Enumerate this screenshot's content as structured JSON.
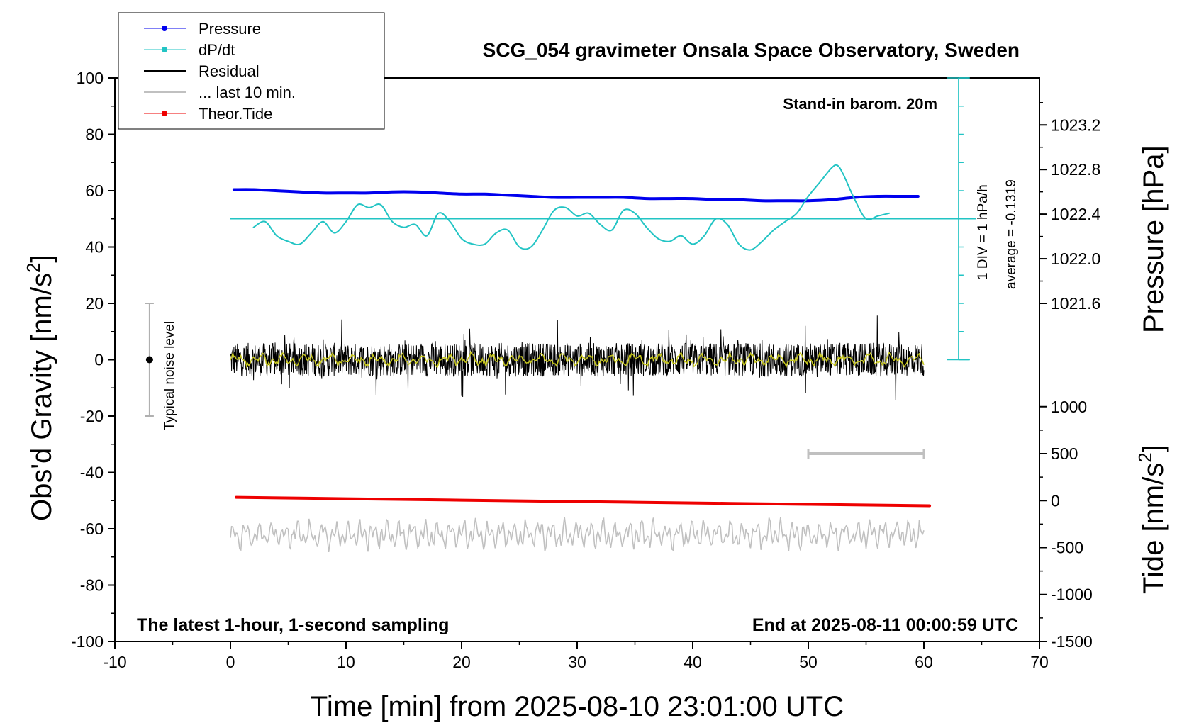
{
  "chart_data": {
    "type": "line",
    "title": "SCG_054 gravimeter Onsala Space Observatory, Sweden",
    "xlabel": "Time [min] from 2025-08-10 23:01:00 UTC",
    "ylabel_left": "Obs'd Gravity [nm/s",
    "ylabel_left_sup": "2",
    "ylabel_left_end": "]",
    "ylabel_right_top": "Pressure [hPa]",
    "ylabel_right_bottom": "Tide [nm/s",
    "ylabel_right_bottom_sup": "2",
    "ylabel_right_bottom_end": "]",
    "xlim": [
      -10,
      70
    ],
    "ylim": [
      -100,
      100
    ],
    "x_ticks": [
      "-10",
      "0",
      "10",
      "20",
      "30",
      "40",
      "50",
      "60",
      "70"
    ],
    "y_ticks": [
      "-100",
      "-80",
      "-60",
      "-40",
      "-20",
      "0",
      "20",
      "40",
      "60",
      "80",
      "100"
    ],
    "pressure_ticks": [
      "1021.6",
      "1022.0",
      "1022.4",
      "1022.8",
      "1023.2"
    ],
    "tide_ticks": [
      "-1500",
      "-1000",
      "-500",
      "0",
      "500",
      "1000"
    ],
    "annotations": {
      "barometer": "Stand-in barom. 20m",
      "bottom_left": "The latest 1-hour, 1-second sampling",
      "bottom_right": "End at 2025-08-11 00:00:59 UTC",
      "noise_label": "Typical noise level",
      "div_label": "1 DIV = 1 hPa/h",
      "average_label": "average = -0.1319"
    },
    "legend": {
      "placement": "top-left",
      "entries": [
        "Pressure",
        "dP/dt",
        "Residual",
        "... last 10 min.",
        "Theor.Tide"
      ]
    },
    "colors": {
      "pressure": "#0000ee",
      "dpdt": "#22c4c4",
      "residual": "#000000",
      "residual_smooth": "#c8c820",
      "last10": "#c0c0c0",
      "tide": "#ee0000"
    },
    "noise_level": {
      "x": -7,
      "y": 0,
      "range": [
        -20,
        20
      ]
    },
    "dpdt_reference_level": 50,
    "last10_bar": {
      "x": [
        50,
        60
      ],
      "tide": 500
    },
    "series": [
      {
        "name": "Pressure",
        "axis": "pressure",
        "x": [
          0.3,
          2,
          4,
          6,
          8,
          10,
          12,
          14,
          16,
          18,
          20,
          22,
          24,
          26,
          28,
          30,
          32,
          34,
          36,
          38,
          40,
          42,
          44,
          46,
          48,
          50,
          52,
          54,
          56,
          58,
          59.5
        ],
        "y": [
          1022.62,
          1022.62,
          1022.61,
          1022.6,
          1022.59,
          1022.59,
          1022.59,
          1022.6,
          1022.6,
          1022.59,
          1022.58,
          1022.58,
          1022.57,
          1022.56,
          1022.55,
          1022.55,
          1022.55,
          1022.55,
          1022.54,
          1022.54,
          1022.54,
          1022.53,
          1022.53,
          1022.52,
          1022.52,
          1022.52,
          1022.53,
          1022.55,
          1022.56,
          1022.56,
          1022.56
        ]
      },
      {
        "name": "dP/dt",
        "axis": "gravity",
        "x": [
          2,
          3,
          4,
          5,
          6,
          7,
          8,
          9,
          10,
          11,
          12,
          13,
          14,
          15,
          16,
          17,
          18,
          19,
          20,
          21,
          22,
          23,
          24,
          25,
          26,
          27,
          28,
          29,
          30,
          31,
          32,
          33,
          34,
          35,
          36,
          37,
          38,
          39,
          40,
          41,
          42,
          43,
          44,
          45,
          46,
          47,
          48,
          49,
          50,
          51,
          52,
          52.5,
          53,
          54,
          55,
          56,
          57
        ],
        "y": [
          47,
          49,
          44,
          42,
          41,
          45,
          49,
          45,
          49,
          55,
          54,
          55,
          49,
          47,
          48,
          44,
          52,
          49,
          43,
          41,
          41,
          45,
          46,
          40,
          40,
          46,
          53,
          54,
          51,
          52,
          48,
          46,
          53,
          52,
          47,
          43,
          42,
          44,
          41,
          44,
          50,
          48,
          41,
          39,
          42,
          46,
          49,
          52,
          58,
          63,
          68,
          69,
          66,
          57,
          50,
          51,
          52
        ]
      },
      {
        "name": "Theor.Tide",
        "axis": "tide",
        "x": [
          0.5,
          10,
          20,
          30,
          40,
          50,
          60.5
        ],
        "y": [
          35,
          20,
          5,
          -10,
          -25,
          -40,
          -55
        ]
      }
    ]
  }
}
